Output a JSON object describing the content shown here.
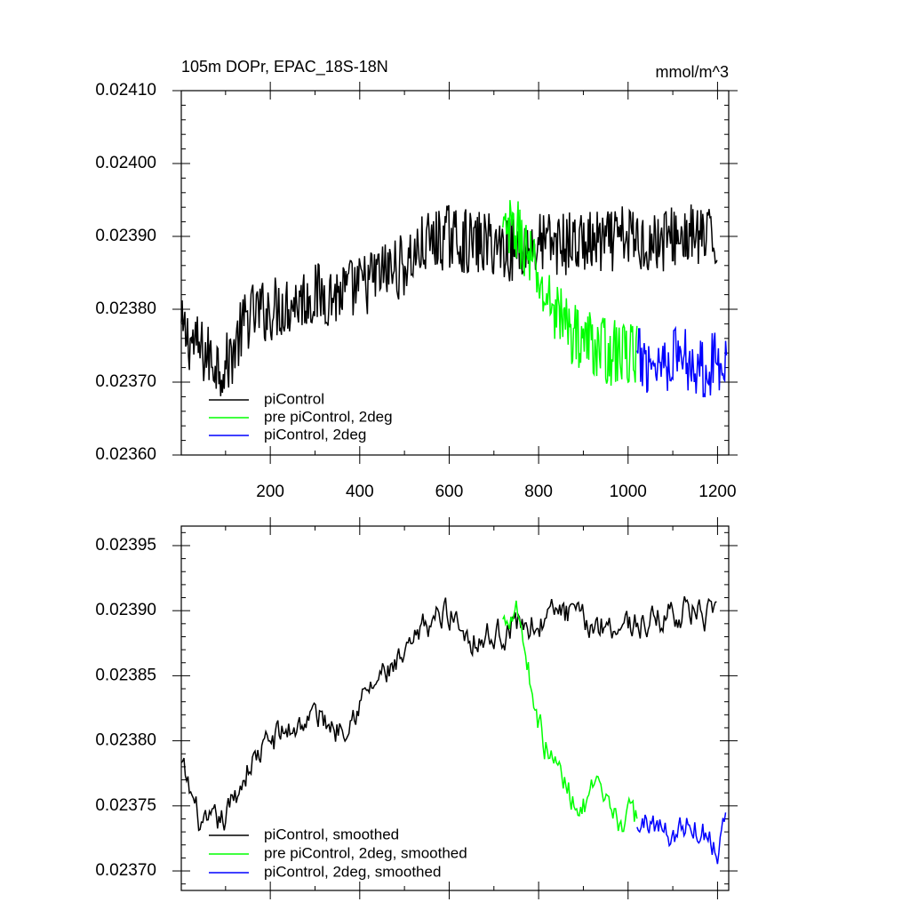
{
  "chart_data": [
    {
      "type": "line",
      "title": "105m DOPr, EPAC_18S-18N",
      "units": "mmol/m^3",
      "xlim": [
        1,
        1225
      ],
      "ylim": [
        0.0236,
        0.0241
      ],
      "x_ticks": [
        200,
        400,
        600,
        800,
        1000,
        1200
      ],
      "x_tick_labels": [
        "200",
        "400",
        "600",
        "800",
        "1000",
        "1200"
      ],
      "y_ticks": [
        0.0236,
        0.0237,
        0.0238,
        0.0239,
        0.024,
        0.0241
      ],
      "y_tick_labels": [
        "0.02360",
        "0.02370",
        "0.02380",
        "0.02390",
        "0.02400",
        "0.02410"
      ],
      "legend_position": "bottom-left",
      "series": [
        {
          "name": "piControl",
          "color": "#000000",
          "x": [
            1,
            50,
            100,
            150,
            200,
            250,
            300,
            350,
            400,
            450,
            500,
            550,
            600,
            650,
            700,
            750,
            800,
            850,
            900,
            950,
            1000,
            1050,
            1100,
            1150,
            1200
          ],
          "values": [
            0.02377,
            0.02374,
            0.02372,
            0.02379,
            0.0238,
            0.02381,
            0.02382,
            0.02382,
            0.02383,
            0.02385,
            0.02386,
            0.02389,
            0.0239,
            0.02389,
            0.02389,
            0.02388,
            0.02389,
            0.02389,
            0.02389,
            0.02389,
            0.0239,
            0.02389,
            0.0239,
            0.0239,
            0.02389
          ]
        },
        {
          "name": "pre piControl, 2deg",
          "color": "#00ff00",
          "x": [
            720,
            750,
            780,
            810,
            840,
            870,
            900,
            930,
            960,
            990,
            1020
          ],
          "values": [
            0.0239,
            0.02391,
            0.02387,
            0.02382,
            0.0238,
            0.02377,
            0.02376,
            0.02375,
            0.02374,
            0.02374,
            0.02374
          ]
        },
        {
          "name": "piControl, 2deg",
          "color": "#0000ff",
          "x": [
            1020,
            1050,
            1080,
            1110,
            1140,
            1170,
            1200,
            1220
          ],
          "values": [
            0.02373,
            0.02373,
            0.02373,
            0.02374,
            0.02373,
            0.02372,
            0.02373,
            0.02374
          ]
        }
      ]
    },
    {
      "type": "line",
      "title": "",
      "xlim": [
        1,
        1225
      ],
      "ylim": [
        0.023685,
        0.023965
      ],
      "y_ticks": [
        0.0237,
        0.02375,
        0.0238,
        0.02385,
        0.0239,
        0.02395
      ],
      "y_tick_labels": [
        "0.02370",
        "0.02375",
        "0.02380",
        "0.02385",
        "0.02390",
        "0.02395"
      ],
      "legend_position": "bottom-left",
      "series": [
        {
          "name": "piControl, smoothed",
          "color": "#000000",
          "x": [
            1,
            50,
            100,
            150,
            200,
            250,
            300,
            350,
            400,
            450,
            500,
            550,
            600,
            650,
            700,
            750,
            800,
            850,
            900,
            950,
            1000,
            1050,
            1100,
            1150,
            1200
          ],
          "values": [
            0.02378,
            0.02373,
            0.02374,
            0.02378,
            0.0238,
            0.02381,
            0.02382,
            0.02381,
            0.02383,
            0.02385,
            0.02386,
            0.02389,
            0.0239,
            0.02388,
            0.02388,
            0.02389,
            0.02389,
            0.0239,
            0.02389,
            0.02389,
            0.02389,
            0.02389,
            0.0239,
            0.0239,
            0.02389
          ]
        },
        {
          "name": "pre piControl, 2deg, smoothed",
          "color": "#00ff00",
          "x": [
            720,
            750,
            780,
            810,
            840,
            870,
            900,
            930,
            960,
            990,
            1020
          ],
          "values": [
            0.02389,
            0.02391,
            0.02385,
            0.0238,
            0.02378,
            0.02376,
            0.02375,
            0.02376,
            0.02374,
            0.02374,
            0.02374
          ]
        },
        {
          "name": "piControl, 2deg, smoothed",
          "color": "#0000ff",
          "x": [
            1020,
            1050,
            1080,
            1110,
            1140,
            1170,
            1200,
            1220
          ],
          "values": [
            0.02373,
            0.02374,
            0.02373,
            0.02373,
            0.02374,
            0.02373,
            0.02372,
            0.02375
          ]
        }
      ]
    }
  ]
}
